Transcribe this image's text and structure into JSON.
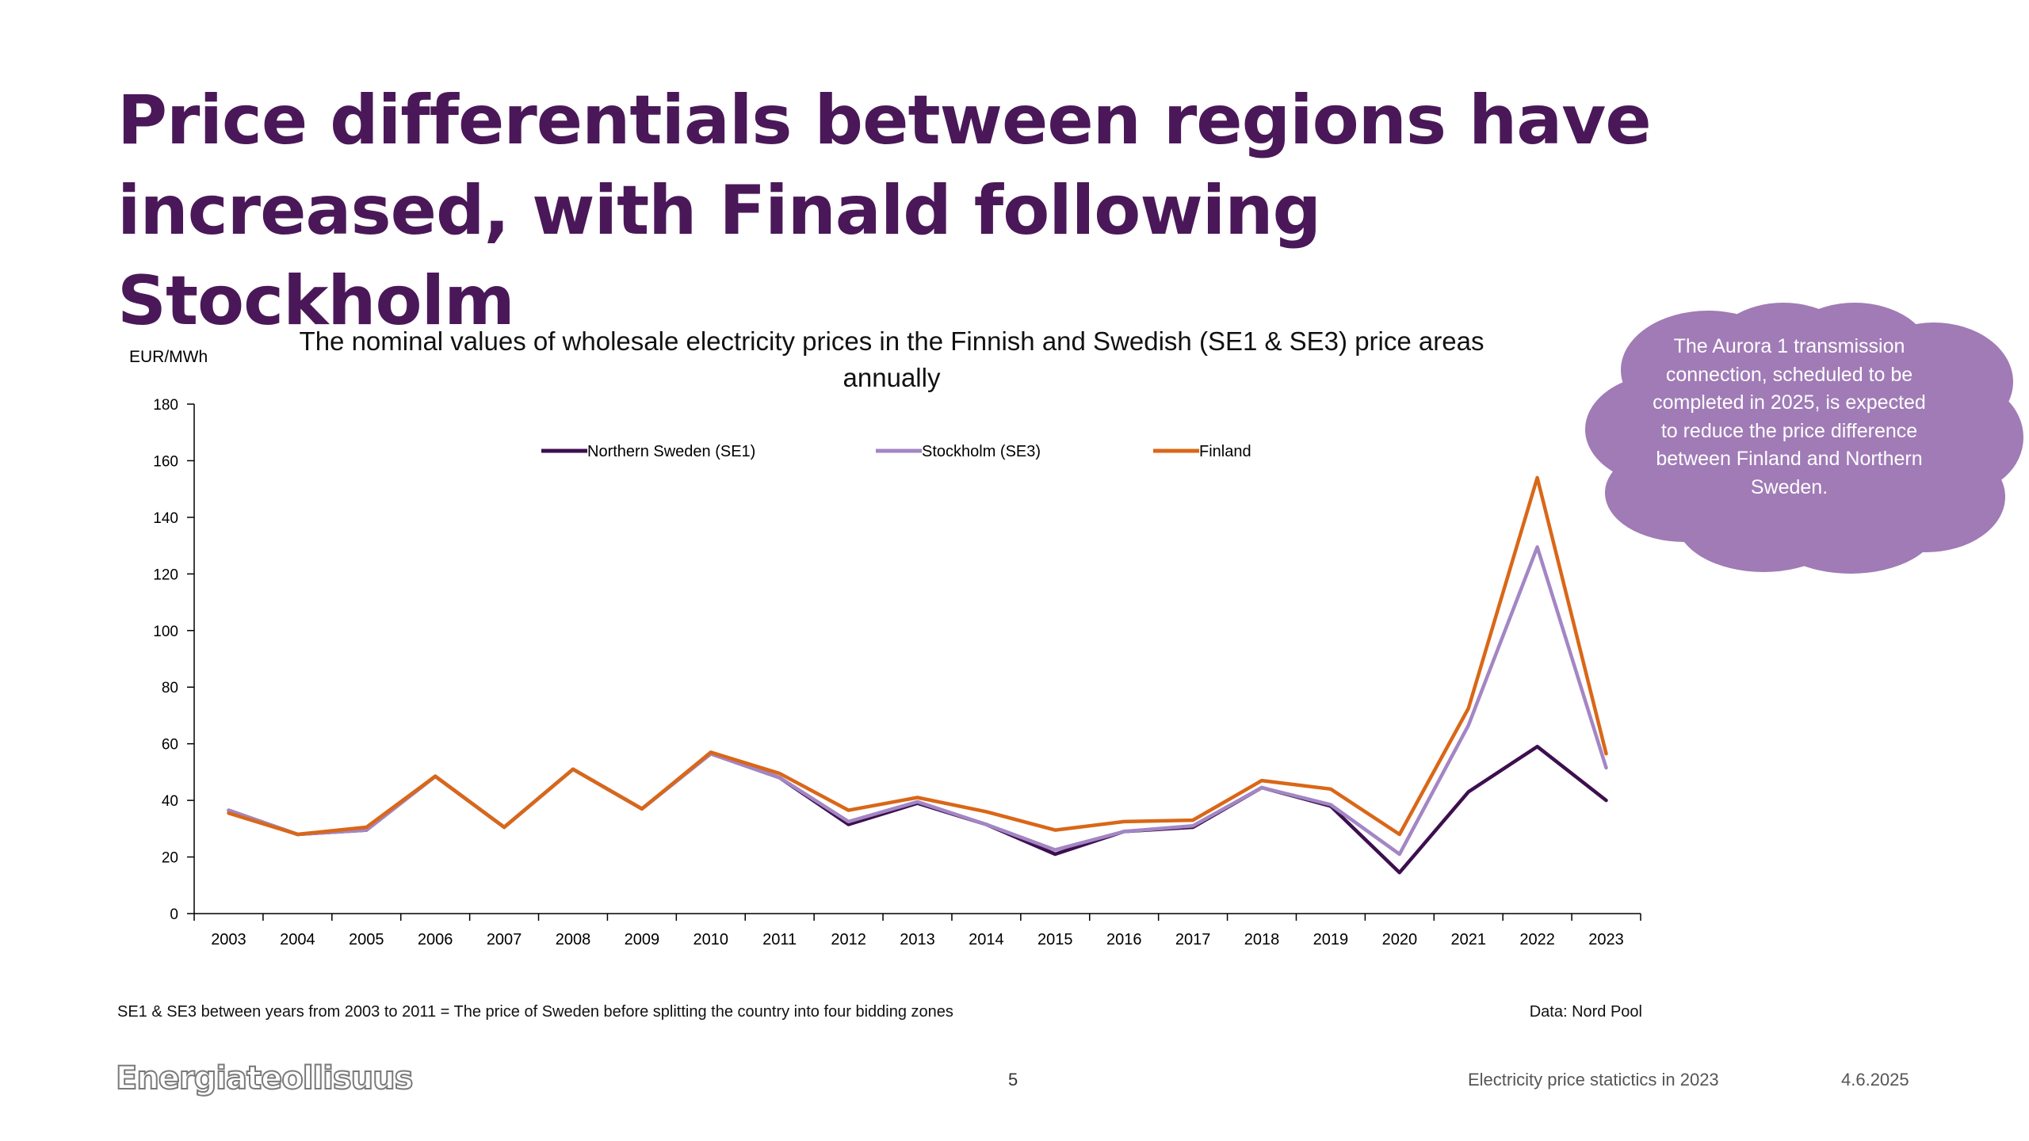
{
  "slide": {
    "title_line1": "Price differentials between regions have",
    "title_line2": "increased, with Finald following Stockholm",
    "callout": "The Aurora 1 transmission connection, scheduled to be completed in 2025, is expected to reduce the price difference between Finland and Northern Sweden.",
    "footnote": "SE1 & SE3 between years from 2003 to 2011 = The price of Sweden before splitting the country into four bidding zones",
    "data_source": "Data: Nord Pool",
    "logo": "Energiateollisuus",
    "page_number": "5",
    "footer_title": "Electricity price statictics in 2023",
    "footer_date": "4.6.2025",
    "colors": {
      "title": "#4a1858",
      "callout_bg": "#a07bb6"
    }
  },
  "chart_data": {
    "type": "line",
    "title": "The nominal values of wholesale electricity prices in the Finnish and Swedish (SE1 & SE3) price areas annually",
    "ylabel": "EUR/MWh",
    "xlabel": "",
    "ylim": [
      0,
      180
    ],
    "yticks": [
      0,
      20,
      40,
      60,
      80,
      100,
      120,
      140,
      160,
      180
    ],
    "grid": false,
    "legend_position": "top",
    "categories": [
      "2003",
      "2004",
      "2005",
      "2006",
      "2007",
      "2008",
      "2009",
      "2010",
      "2011",
      "2012",
      "2013",
      "2014",
      "2015",
      "2016",
      "2017",
      "2018",
      "2019",
      "2020",
      "2021",
      "2022",
      "2023"
    ],
    "series": [
      {
        "name": "Northern Sweden (SE1)",
        "color": "#3d0f4f",
        "values": [
          36.5,
          28,
          29.5,
          48.5,
          30.5,
          51,
          37,
          56.5,
          48,
          31.5,
          39,
          31.5,
          21,
          29,
          30.5,
          44.5,
          38,
          14.5,
          43,
          59,
          40
        ]
      },
      {
        "name": "Stockholm (SE3)",
        "color": "#a386c4",
        "values": [
          36.5,
          28,
          29.5,
          48.5,
          30.5,
          51,
          37,
          56.5,
          48,
          32.5,
          39.5,
          31.5,
          22.5,
          29,
          31,
          44.5,
          38.5,
          21,
          66.5,
          129.5,
          51.5
        ]
      },
      {
        "name": "Finland",
        "color": "#d96718",
        "values": [
          35.5,
          28,
          30.5,
          48.5,
          30.5,
          51,
          37,
          57,
          49.5,
          36.5,
          41,
          36,
          29.5,
          32.5,
          33,
          47,
          44,
          28,
          72.5,
          154,
          56.5
        ]
      }
    ]
  }
}
